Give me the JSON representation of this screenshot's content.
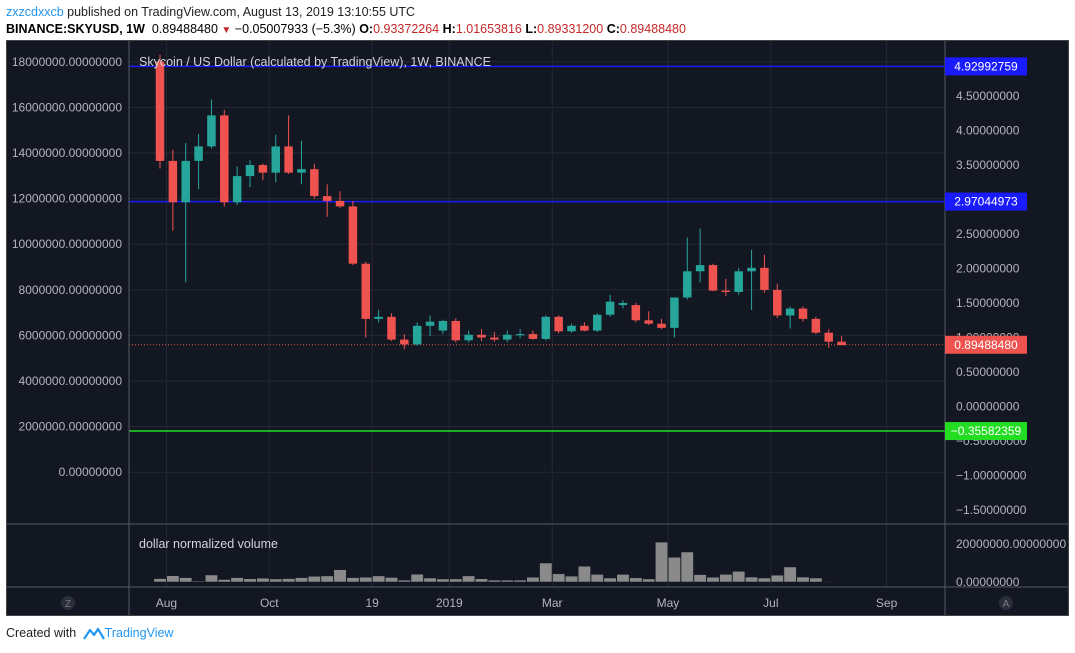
{
  "header": {
    "author": "zxzcdxxcb",
    "published": "published on TradingView.com, August 13, 2019 13:10:55 UTC",
    "symbol": "BINANCE:SKYUSD, 1W",
    "price": "0.89488480",
    "change_arrow": "▼",
    "change": "−0.05007933 (−5.3%)",
    "o_label": "O:",
    "o": "0.93372264",
    "h_label": "H:",
    "h": "1.01653816",
    "l_label": "L:",
    "l": "0.89331200",
    "c_label": "C:",
    "c": "0.89488480"
  },
  "footer": {
    "created_with": "Created with",
    "brand": "TradingView"
  },
  "chart_data": {
    "type": "candlestick",
    "title": "Skycoin / US Dollar (calculated by TradingView), 1W, BINANCE",
    "volume_label": "dollar normalized volume",
    "left_axis": {
      "ticks": [
        "18000000.00000000",
        "16000000.00000000",
        "14000000.00000000",
        "12000000.00000000",
        "10000000.00000000",
        "8000000.00000000",
        "6000000.00000000",
        "4000000.00000000",
        "2000000.00000000",
        "0.00000000"
      ],
      "range": [
        -1700000,
        19000000
      ]
    },
    "right_axis": {
      "ticks": [
        "4.50000000",
        "4.00000000",
        "3.50000000",
        "3.00000000",
        "2.50000000",
        "2.00000000",
        "1.50000000",
        "1.00000000",
        "0.50000000",
        "0.00000000",
        "−0.50000000",
        "−1.00000000",
        "−1.50000000"
      ],
      "range": [
        -1.5,
        4.95
      ]
    },
    "volume_axis": {
      "ticks": [
        "20000000.00000000",
        "0.00000000"
      ],
      "max": 20000000
    },
    "x_labels": [
      "Aug",
      "Oct",
      "19",
      "2019",
      "Mar",
      "May",
      "Jul",
      "Sep"
    ],
    "x_label_weeks": [
      0.5,
      8.5,
      16.5,
      22.5,
      30.5,
      39.5,
      47.5,
      56.5
    ],
    "lines": [
      {
        "value": 4.92992759,
        "label": "4.92992759",
        "color": "#1a1aff"
      },
      {
        "value": 2.97044973,
        "label": "2.97044973",
        "color": "#1a1aff"
      },
      {
        "value": -0.35582359,
        "label": "−0.35582359",
        "color": "#22dd22"
      }
    ],
    "last_price": {
      "value": 0.8948848,
      "label": "0.89488480",
      "color": "#ef5350"
    },
    "candles": [
      {
        "o": 5.0,
        "h": 5.1,
        "l": 3.45,
        "c": 3.56
      },
      {
        "o": 3.56,
        "h": 3.72,
        "l": 2.55,
        "c": 2.96
      },
      {
        "o": 2.96,
        "h": 3.82,
        "l": 1.8,
        "c": 3.56
      },
      {
        "o": 3.56,
        "h": 3.95,
        "l": 3.15,
        "c": 3.77
      },
      {
        "o": 3.77,
        "h": 4.45,
        "l": 3.74,
        "c": 4.22
      },
      {
        "o": 4.22,
        "h": 4.3,
        "l": 2.9,
        "c": 2.96
      },
      {
        "o": 2.96,
        "h": 3.48,
        "l": 2.92,
        "c": 3.34
      },
      {
        "o": 3.34,
        "h": 3.57,
        "l": 3.18,
        "c": 3.5
      },
      {
        "o": 3.5,
        "h": 3.52,
        "l": 3.28,
        "c": 3.39
      },
      {
        "o": 3.39,
        "h": 3.94,
        "l": 3.25,
        "c": 3.77
      },
      {
        "o": 3.77,
        "h": 4.22,
        "l": 3.37,
        "c": 3.39
      },
      {
        "o": 3.39,
        "h": 3.85,
        "l": 3.22,
        "c": 3.44
      },
      {
        "o": 3.44,
        "h": 3.52,
        "l": 3.01,
        "c": 3.05
      },
      {
        "o": 3.05,
        "h": 3.22,
        "l": 2.75,
        "c": 2.98
      },
      {
        "o": 2.98,
        "h": 3.12,
        "l": 2.88,
        "c": 2.9
      },
      {
        "o": 2.9,
        "h": 2.98,
        "l": 2.05,
        "c": 2.07
      },
      {
        "o": 2.07,
        "h": 2.1,
        "l": 1.0,
        "c": 1.27
      },
      {
        "o": 1.27,
        "h": 1.4,
        "l": 1.22,
        "c": 1.3
      },
      {
        "o": 1.3,
        "h": 1.35,
        "l": 0.95,
        "c": 0.97
      },
      {
        "o": 0.97,
        "h": 1.05,
        "l": 0.83,
        "c": 0.9
      },
      {
        "o": 0.9,
        "h": 1.22,
        "l": 0.88,
        "c": 1.17
      },
      {
        "o": 1.17,
        "h": 1.32,
        "l": 1.02,
        "c": 1.23
      },
      {
        "o": 1.1,
        "h": 1.26,
        "l": 1.05,
        "c": 1.24
      },
      {
        "o": 1.24,
        "h": 1.28,
        "l": 0.93,
        "c": 0.96
      },
      {
        "o": 0.96,
        "h": 1.1,
        "l": 0.93,
        "c": 1.04
      },
      {
        "o": 1.04,
        "h": 1.12,
        "l": 0.95,
        "c": 1.0
      },
      {
        "o": 1.0,
        "h": 1.08,
        "l": 0.94,
        "c": 0.97
      },
      {
        "o": 0.97,
        "h": 1.1,
        "l": 0.93,
        "c": 1.04
      },
      {
        "o": 1.04,
        "h": 1.12,
        "l": 0.99,
        "c": 1.05
      },
      {
        "o": 1.05,
        "h": 1.1,
        "l": 0.97,
        "c": 0.98
      },
      {
        "o": 0.98,
        "h": 1.32,
        "l": 0.96,
        "c": 1.3
      },
      {
        "o": 1.3,
        "h": 1.32,
        "l": 1.06,
        "c": 1.09
      },
      {
        "o": 1.09,
        "h": 1.2,
        "l": 1.07,
        "c": 1.17
      },
      {
        "o": 1.17,
        "h": 1.22,
        "l": 1.09,
        "c": 1.1
      },
      {
        "o": 1.1,
        "h": 1.35,
        "l": 1.08,
        "c": 1.33
      },
      {
        "o": 1.33,
        "h": 1.62,
        "l": 1.3,
        "c": 1.52
      },
      {
        "o": 1.47,
        "h": 1.54,
        "l": 1.42,
        "c": 1.5
      },
      {
        "o": 1.47,
        "h": 1.5,
        "l": 1.22,
        "c": 1.25
      },
      {
        "o": 1.25,
        "h": 1.38,
        "l": 1.18,
        "c": 1.2
      },
      {
        "o": 1.2,
        "h": 1.27,
        "l": 1.12,
        "c": 1.14
      },
      {
        "o": 1.14,
        "h": 1.58,
        "l": 1.0,
        "c": 1.58
      },
      {
        "o": 1.58,
        "h": 2.45,
        "l": 1.55,
        "c": 1.96
      },
      {
        "o": 1.96,
        "h": 2.58,
        "l": 1.8,
        "c": 2.05
      },
      {
        "o": 2.05,
        "h": 2.07,
        "l": 1.67,
        "c": 1.68
      },
      {
        "o": 1.68,
        "h": 1.85,
        "l": 1.6,
        "c": 1.66
      },
      {
        "o": 1.66,
        "h": 2.01,
        "l": 1.62,
        "c": 1.96
      },
      {
        "o": 1.96,
        "h": 2.27,
        "l": 1.4,
        "c": 2.01
      },
      {
        "o": 2.01,
        "h": 2.2,
        "l": 1.65,
        "c": 1.69
      },
      {
        "o": 1.69,
        "h": 1.78,
        "l": 1.28,
        "c": 1.32
      },
      {
        "o": 1.32,
        "h": 1.45,
        "l": 1.13,
        "c": 1.42
      },
      {
        "o": 1.42,
        "h": 1.45,
        "l": 1.23,
        "c": 1.27
      },
      {
        "o": 1.27,
        "h": 1.3,
        "l": 1.05,
        "c": 1.07
      },
      {
        "o": 1.07,
        "h": 1.12,
        "l": 0.85,
        "c": 0.94
      },
      {
        "o": 0.94,
        "h": 1.02,
        "l": 0.89,
        "c": 0.89
      }
    ],
    "volume": [
      1800000,
      3300000,
      2300000,
      500000,
      3700000,
      1300000,
      2300000,
      1700000,
      2000000,
      1600000,
      1800000,
      2300000,
      3000000,
      3200000,
      6500000,
      2300000,
      2500000,
      3200000,
      2400000,
      1000000,
      4100000,
      2100000,
      1600000,
      1600000,
      3200000,
      1700000,
      1000000,
      1000000,
      1000000,
      2500000,
      10000000,
      4300000,
      3100000,
      8300000,
      4000000,
      2100000,
      4000000,
      2200000,
      1600000,
      21000000,
      13000000,
      15800000,
      3900000,
      2500000,
      4000000,
      5600000,
      2600000,
      2100000,
      3600000,
      7900000,
      2600000,
      2100000,
      300000,
      0
    ]
  }
}
